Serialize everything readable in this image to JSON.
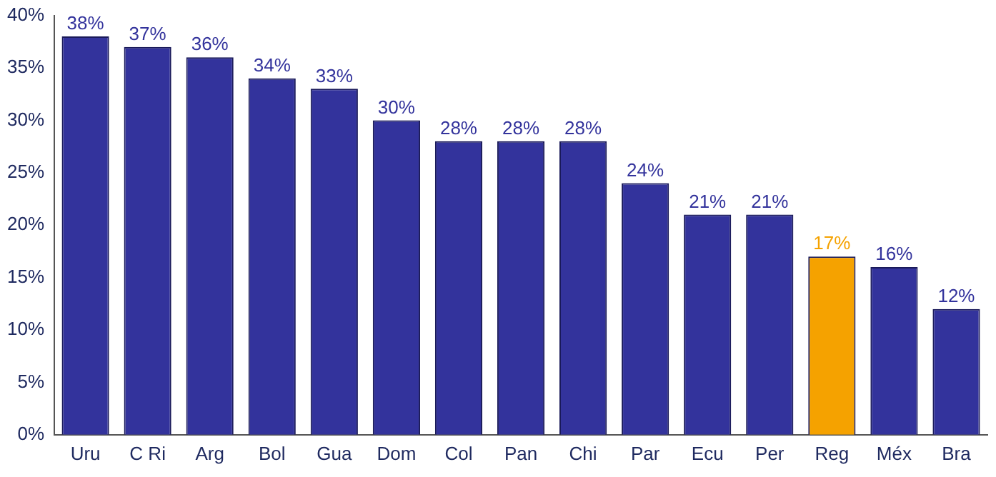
{
  "chart_data": {
    "type": "bar",
    "categories": [
      "Uru",
      "C Ri",
      "Arg",
      "Bol",
      "Gua",
      "Dom",
      "Col",
      "Pan",
      "Chi",
      "Par",
      "Ecu",
      "Per",
      "Reg",
      "Méx",
      "Bra"
    ],
    "values": [
      38,
      37,
      36,
      34,
      33,
      30,
      28,
      28,
      28,
      24,
      21,
      21,
      17,
      16,
      12
    ],
    "colors": [
      "#33339c",
      "#33339c",
      "#33339c",
      "#33339c",
      "#33339c",
      "#33339c",
      "#33339c",
      "#33339c",
      "#33339c",
      "#33339c",
      "#33339c",
      "#33339c",
      "#f5a200",
      "#33339c",
      "#33339c"
    ],
    "ylim": [
      0,
      40
    ],
    "yticks": [
      {
        "value": 0,
        "label": "0%"
      },
      {
        "value": 5,
        "label": "5%"
      },
      {
        "value": 10,
        "label": "10%"
      },
      {
        "value": 15,
        "label": "15%"
      },
      {
        "value": 20,
        "label": "20%"
      },
      {
        "value": 25,
        "label": "25%"
      },
      {
        "value": 30,
        "label": "30%"
      },
      {
        "value": 35,
        "label": "35%"
      },
      {
        "value": 40,
        "label": "40%"
      }
    ],
    "value_labels": [
      "38%",
      "37%",
      "36%",
      "34%",
      "33%",
      "30%",
      "28%",
      "28%",
      "28%",
      "24%",
      "21%",
      "21%",
      "17%",
      "16%",
      "12%"
    ],
    "grid": false,
    "legend": false
  }
}
